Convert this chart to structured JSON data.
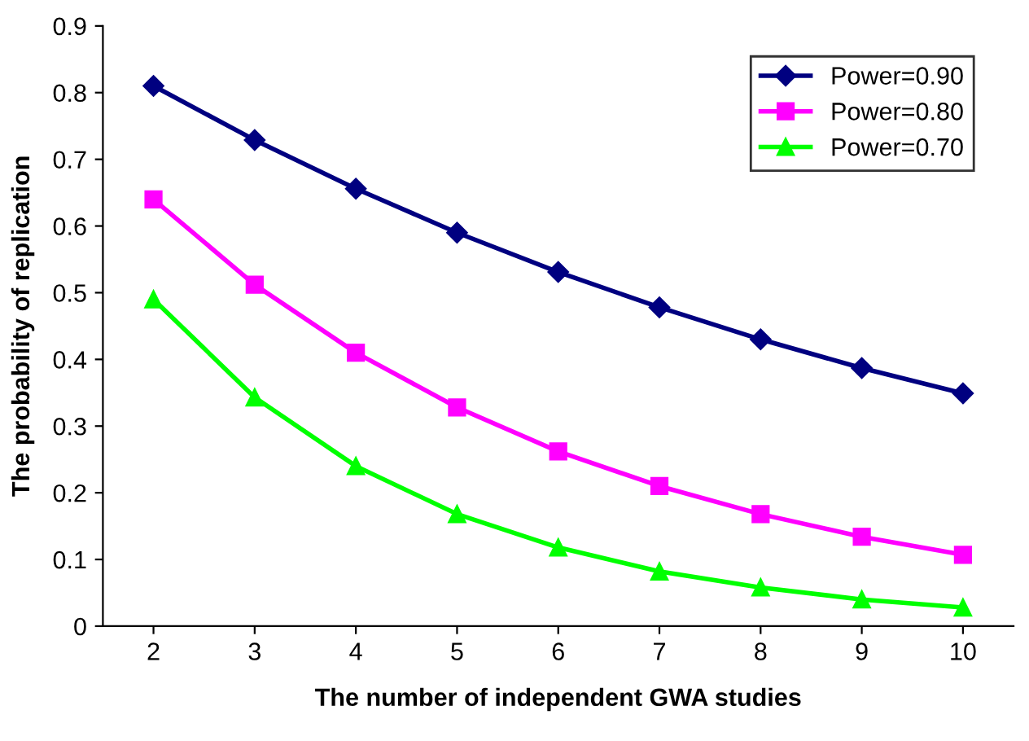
{
  "chart_data": {
    "type": "line",
    "xlabel": "The number of independent GWA studies",
    "ylabel": "The probability of replication",
    "categories": [
      "2",
      "3",
      "4",
      "5",
      "6",
      "7",
      "8",
      "9",
      "10"
    ],
    "series": [
      {
        "name": "Power=0.90",
        "color": "#000080",
        "marker": "diamond",
        "values": [
          0.81,
          0.729,
          0.656,
          0.59,
          0.531,
          0.478,
          0.43,
          0.387,
          0.349
        ]
      },
      {
        "name": "Power=0.80",
        "color": "#ff00ff",
        "marker": "square",
        "values": [
          0.64,
          0.512,
          0.41,
          0.328,
          0.262,
          0.21,
          0.168,
          0.134,
          0.107
        ]
      },
      {
        "name": "Power=0.70",
        "color": "#00ff00",
        "marker": "triangle",
        "values": [
          0.49,
          0.343,
          0.24,
          0.168,
          0.118,
          0.082,
          0.058,
          0.04,
          0.028
        ]
      }
    ],
    "ylim": [
      0,
      0.9
    ],
    "yticks": [
      0,
      0.1,
      0.2,
      0.3,
      0.4,
      0.5,
      0.6,
      0.7,
      0.8,
      0.9
    ],
    "grid": false,
    "legend": "top right",
    "line_style": "solid"
  }
}
